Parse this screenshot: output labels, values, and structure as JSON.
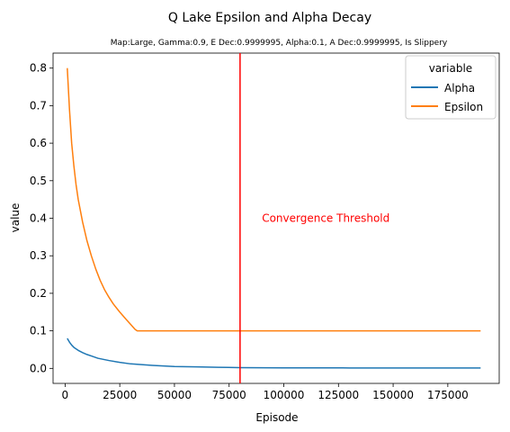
{
  "chart_data": {
    "type": "line",
    "title": "Q Lake Epsilon and Alpha Decay",
    "subtitle": "Map:Large, Gamma:0.9, E Dec:0.9999995, Alpha:0.1, A Dec:0.9999995, Is Slippery",
    "xlabel": "Episode",
    "ylabel": "value",
    "xlim": [
      -5500,
      198500
    ],
    "ylim": [
      -0.04,
      0.84
    ],
    "xticks": [
      0,
      25000,
      50000,
      75000,
      100000,
      125000,
      150000,
      175000
    ],
    "yticks": [
      0.0,
      0.1,
      0.2,
      0.3,
      0.4,
      0.5,
      0.6,
      0.7,
      0.8
    ],
    "grid": false,
    "legend": {
      "title": "variable",
      "placement": "top-right"
    },
    "series": [
      {
        "name": "Alpha",
        "color": "#1f77b4",
        "x": [
          1000,
          2000,
          3000,
          4000,
          6000,
          8000,
          10000,
          12500,
          15000,
          20000,
          25000,
          30000,
          40000,
          50000,
          60000,
          70000,
          80000,
          100000,
          130000,
          160000,
          190000
        ],
        "values": [
          0.08,
          0.07,
          0.062,
          0.056,
          0.048,
          0.042,
          0.037,
          0.032,
          0.027,
          0.021,
          0.016,
          0.012,
          0.008,
          0.005,
          0.004,
          0.003,
          0.002,
          0.0015,
          0.0012,
          0.001,
          0.001
        ]
      },
      {
        "name": "Epsilon",
        "color": "#ff7f0e",
        "x": [
          1000,
          2000,
          3000,
          4000,
          5000,
          6000,
          8000,
          10000,
          12000,
          14000,
          16000,
          18000,
          20000,
          22000,
          25000,
          28000,
          30000,
          32000,
          33000,
          50000,
          100000,
          150000,
          190000
        ],
        "values": [
          0.8,
          0.69,
          0.6,
          0.54,
          0.49,
          0.45,
          0.39,
          0.34,
          0.3,
          0.265,
          0.235,
          0.21,
          0.19,
          0.172,
          0.15,
          0.13,
          0.117,
          0.104,
          0.1,
          0.1,
          0.1,
          0.1,
          0.1
        ]
      }
    ],
    "annotations": [
      {
        "type": "vline",
        "x": 80000,
        "color": "#ff0000"
      },
      {
        "type": "text",
        "text": "Convergence Threshold",
        "x": 90000,
        "y": 0.4,
        "color": "#ff0000"
      }
    ]
  }
}
